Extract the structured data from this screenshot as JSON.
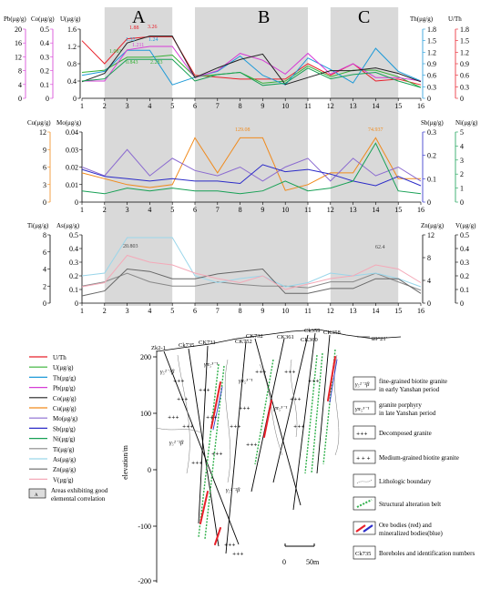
{
  "zones": [
    {
      "label": "A",
      "from": 2,
      "to": 5
    },
    {
      "label": "B",
      "from": 6,
      "to": 11
    },
    {
      "label": "C",
      "from": 12,
      "to": 15
    }
  ],
  "x_ticks": [
    "1",
    "2",
    "3",
    "4",
    "5",
    "6",
    "7",
    "8",
    "9",
    "10",
    "11",
    "12",
    "13",
    "14",
    "15",
    "16"
  ],
  "colors": {
    "U/Th": "#e8202a",
    "U": "#35b034",
    "Th": "#1e9ad8",
    "Pb": "#d63cd6",
    "Co": "#222222",
    "Cu": "#f08a1c",
    "Mo": "#8a6ad0",
    "Sb": "#2b2bc8",
    "Ni": "#17a055",
    "Ti": "#888888",
    "As": "#9ad6ea",
    "Zn": "#666666",
    "V": "#f4a9b8"
  },
  "panel1": {
    "left_axes": [
      {
        "label": "Pb(μg/g)",
        "color": "#d63cd6",
        "ticks": [
          "0",
          "4",
          "8",
          "12",
          "16",
          "20"
        ]
      },
      {
        "label": "Co(μg/g)",
        "color": "#d63cd6",
        "ticks": [
          "0",
          "0.1",
          "0.2",
          "0.3",
          "0.4",
          "0.5"
        ]
      },
      {
        "label": "U(μg/g)",
        "color": "#000000",
        "ticks": [
          "0",
          "0.4",
          "0.8",
          "1.2",
          "1.6"
        ]
      }
    ],
    "right_axes": [
      {
        "label": "Th(μg/g)",
        "color": "#1e9ad8",
        "ticks": [
          "0",
          "0.3",
          "0.6",
          "0.9",
          "1.2",
          "1.5",
          "1.8"
        ]
      },
      {
        "label": "U/Th",
        "color": "#e8202a",
        "ticks": [
          "0",
          "0.3",
          "0.6",
          "0.9",
          "1.2",
          "1.5",
          "1.8"
        ]
      }
    ],
    "annotations": [
      {
        "text": "1.88",
        "color": "#e8202a"
      },
      {
        "text": "3.26",
        "color": "#e8202a"
      },
      {
        "text": "1.32",
        "color": "#1e9ad8"
      },
      {
        "text": "1.24",
        "color": "#1e9ad8"
      },
      {
        "text": "1.211",
        "color": "#d63cd6"
      },
      {
        "text": "1.081",
        "color": "#35b034"
      },
      {
        "text": "0.843",
        "color": "#35b034"
      },
      {
        "text": "2.283",
        "color": "#35b034"
      }
    ],
    "series": [
      {
        "name": "U/Th",
        "ymax": 1.8,
        "values": [
          1.5,
          0.9,
          1.55,
          1.6,
          1.6,
          0.6,
          0.55,
          0.5,
          0.5,
          0.5,
          0.9,
          0.6,
          0.9,
          0.45,
          0.5,
          0.35
        ]
      },
      {
        "name": "U",
        "ymax": 1.6,
        "values": [
          0.6,
          0.65,
          0.95,
          0.95,
          1.0,
          0.5,
          0.55,
          0.6,
          0.35,
          0.4,
          0.75,
          0.5,
          0.65,
          0.65,
          0.5,
          0.25
        ]
      },
      {
        "name": "Th",
        "ymax": 1.8,
        "values": [
          0.6,
          0.7,
          1.25,
          1.25,
          0.35,
          0.55,
          0.7,
          1.1,
          0.6,
          0.35,
          1.05,
          0.75,
          0.4,
          1.3,
          0.7,
          0.45
        ]
      },
      {
        "name": "Pb",
        "ymax": 20,
        "values": [
          5,
          5,
          14,
          15,
          15,
          6,
          8,
          13,
          11,
          7,
          13,
          7,
          10,
          6,
          6,
          5
        ]
      },
      {
        "name": "Co",
        "ymax": 0.5,
        "values": [
          0.12,
          0.18,
          0.4,
          0.45,
          0.45,
          0.15,
          0.22,
          0.28,
          0.32,
          0.1,
          0.15,
          0.2,
          0.2,
          0.22,
          0.18,
          0.12
        ]
      },
      {
        "name": "Ni",
        "ymax": 1.6,
        "values": [
          0.4,
          0.45,
          0.9,
          0.9,
          0.9,
          0.4,
          0.55,
          0.6,
          0.3,
          0.35,
          0.7,
          0.45,
          0.55,
          0.6,
          0.4,
          0.25
        ]
      }
    ]
  },
  "panel2": {
    "left_axes": [
      {
        "label": "Cu(μg/g)",
        "color": "#f08a1c",
        "ticks": [
          "0",
          "3",
          "6",
          "9",
          "12"
        ]
      },
      {
        "label": "Mo(μg/g)",
        "color": "#000000",
        "ticks": [
          "0",
          "0.01",
          "0.02",
          "0.03",
          "0.04"
        ]
      }
    ],
    "right_axes": [
      {
        "label": "Sb(μg/g)",
        "color": "#2b2bc8",
        "ticks": [
          "0",
          "0.1",
          "0.2",
          "0.3"
        ]
      },
      {
        "label": "Ni(μg/g)",
        "color": "#17a055",
        "ticks": [
          "0",
          "1",
          "2",
          "3",
          "4",
          "5"
        ]
      }
    ],
    "annotations": [
      {
        "text": "129.08",
        "color": "#f08a1c"
      },
      {
        "text": "74.937",
        "color": "#f08a1c"
      }
    ],
    "series": [
      {
        "name": "Cu",
        "ymax": 12,
        "values": [
          5,
          4,
          3,
          2.5,
          3,
          11,
          5,
          11,
          11,
          2,
          3,
          5,
          5,
          11,
          4,
          4
        ]
      },
      {
        "name": "Mo",
        "ymax": 0.04,
        "values": [
          0.02,
          0.015,
          0.03,
          0.015,
          0.025,
          0.018,
          0.015,
          0.02,
          0.012,
          0.02,
          0.025,
          0.012,
          0.025,
          0.015,
          0.02,
          0.012
        ]
      },
      {
        "name": "Sb",
        "ymax": 0.3,
        "values": [
          0.14,
          0.11,
          0.1,
          0.09,
          0.1,
          0.09,
          0.09,
          0.08,
          0.16,
          0.13,
          0.14,
          0.12,
          0.09,
          0.07,
          0.11,
          0.07
        ]
      },
      {
        "name": "Ni",
        "ymax": 5,
        "values": [
          0.8,
          0.6,
          1.0,
          0.8,
          1.0,
          0.8,
          0.8,
          0.6,
          0.8,
          1.5,
          0.8,
          1.0,
          1.5,
          4.2,
          0.8,
          0.6
        ]
      }
    ]
  },
  "panel3": {
    "left_axes": [
      {
        "label": "Ti(μg/g)",
        "color": "#000000",
        "ticks": [
          "0",
          "2",
          "4",
          "6",
          "8"
        ]
      },
      {
        "label": "As(μg/g)",
        "color": "#000000",
        "ticks": [
          "0",
          "0.1",
          "0.2",
          "0.3",
          "0.4",
          "0.5"
        ]
      }
    ],
    "right_axes": [
      {
        "label": "Zn(μg/g)",
        "color": "#000000",
        "ticks": [
          "0",
          "4",
          "8",
          "12"
        ]
      },
      {
        "label": "V(μg/g)",
        "color": "#000000",
        "ticks": [
          "0",
          "0.1",
          "0.2",
          "0.3",
          "0.4",
          "0.5"
        ]
      }
    ],
    "annotations": [
      {
        "text": "20.803",
        "color": "#444444"
      },
      {
        "text": "62.4",
        "color": "#444444"
      }
    ],
    "series": [
      {
        "name": "Ti",
        "ymax": 8,
        "values": [
          2,
          2.5,
          3.5,
          2.5,
          2,
          2,
          2.5,
          2.2,
          2,
          2,
          1.8,
          2.5,
          2.5,
          3.5,
          2.5,
          1.5
        ]
      },
      {
        "name": "As",
        "ymax": 0.5,
        "values": [
          0.2,
          0.22,
          0.48,
          0.48,
          0.48,
          0.2,
          0.15,
          0.18,
          0.2,
          0.12,
          0.15,
          0.22,
          0.2,
          0.22,
          0.18,
          0.12
        ]
      },
      {
        "name": "Zn",
        "ymax": 14,
        "values": [
          1.5,
          2.5,
          7,
          6.5,
          5,
          5,
          6,
          6.5,
          7,
          2,
          2,
          3,
          3,
          5,
          5,
          2
        ]
      },
      {
        "name": "V",
        "ymax": 0.5,
        "values": [
          0.12,
          0.15,
          0.35,
          0.3,
          0.28,
          0.22,
          0.18,
          0.15,
          0.2,
          0.1,
          0.14,
          0.18,
          0.2,
          0.28,
          0.25,
          0.15
        ]
      }
    ]
  },
  "legend_elements": [
    {
      "label": "U/Th",
      "color": "#e8202a"
    },
    {
      "label": "U(μg/g)",
      "color": "#35b034"
    },
    {
      "label": "Th(μg/g)",
      "color": "#1e9ad8"
    },
    {
      "label": "Pb(μg/g)",
      "color": "#d63cd6"
    },
    {
      "label": "Co(μg/g)",
      "color": "#222222"
    },
    {
      "label": "Cu(μg/g)",
      "color": "#f08a1c"
    },
    {
      "label": "Mo(μg/g)",
      "color": "#8a6ad0"
    },
    {
      "label": "Sb(μg/g)",
      "color": "#2b2bc8"
    },
    {
      "label": "Ni(μg/g)",
      "color": "#17a055"
    },
    {
      "label": "Ti(μg/g)",
      "color": "#888888"
    },
    {
      "label": "As(μg/g)",
      "color": "#9ad6ea"
    },
    {
      "label": "Zn(μg/g)",
      "color": "#666666"
    },
    {
      "label": "V(μg/g)",
      "color": "#f4a9b8"
    }
  ],
  "legend_area": {
    "line1": "Areas exhibiting good",
    "line2": "elemental correlation",
    "box": "A"
  },
  "section": {
    "ylabel": "elevation/m",
    "y_ticks": [
      "200",
      "100",
      "0",
      "-100",
      "-200"
    ],
    "boreholes": [
      "Zk2-1",
      "Ck735",
      "CK731",
      "CK732",
      "CK752",
      "CK361",
      "CK360",
      "Ck359",
      "CK358"
    ],
    "bearing": "89°21'",
    "scale_0": "0",
    "scale_50": "50m",
    "rock_label_1": "γ₅²⁻²β",
    "rock_label_2": "γπ₅³⁻¹"
  },
  "legend_geo": [
    {
      "symbol": "γ₅²⁻²β",
      "text1": "fine-grained biotite granite",
      "text2": "in early Yanshan period"
    },
    {
      "symbol": "γπ₅³⁻¹",
      "text1": "granite  porphyry",
      "text2": "in late Yanshan period"
    },
    {
      "symbol": "",
      "text1": "Decomposed granite",
      "text2": ""
    },
    {
      "symbol": "",
      "text1": "Medium-grained biotite granite",
      "text2": ""
    },
    {
      "symbol": "",
      "text1": "Lithologic boundary",
      "text2": ""
    },
    {
      "symbol": "",
      "text1": "Structural alteration belt",
      "text2": ""
    },
    {
      "symbol": "",
      "text1": "Ore bodies (red) and",
      "text2": "mineralized bodies(blue)"
    },
    {
      "symbol": "Ck735",
      "text1": "Boreholes and identification numbers",
      "text2": ""
    }
  ]
}
